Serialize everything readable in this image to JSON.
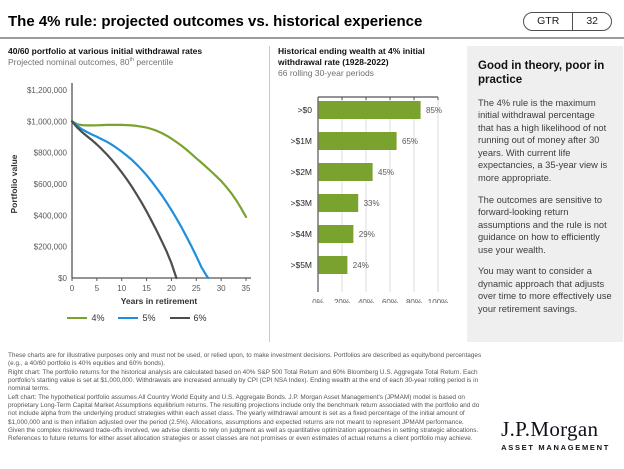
{
  "header": {
    "title": "The 4% rule: projected outcomes vs. historical experience",
    "badge": {
      "program": "GTR",
      "page": "32"
    }
  },
  "left_panel": {
    "title": "40/60 portfolio at various initial withdrawal rates",
    "subtitle_prefix": "Projected nominal outcomes, 80",
    "subtitle_sup": "th",
    "subtitle_suffix": " percentile"
  },
  "mid_panel": {
    "title": "Historical ending wealth at 4% initial withdrawal rate (1928-2022)",
    "subtitle": "66 rolling 30-year periods"
  },
  "chart_data": [
    {
      "type": "line",
      "title": "40/60 portfolio at various initial withdrawal rates",
      "subtitle": "Projected nominal outcomes, 80th percentile",
      "xlabel": "Years in retirement",
      "ylabel": "Portfolio value",
      "xlim": [
        0,
        35
      ],
      "ylim": [
        0,
        1200000
      ],
      "grid": false,
      "legend_position": "bottom",
      "xticks": [
        {
          "v": 0,
          "label": "0"
        },
        {
          "v": 5,
          "label": "5"
        },
        {
          "v": 10,
          "label": "10"
        },
        {
          "v": 15,
          "label": "15"
        },
        {
          "v": 20,
          "label": "20"
        },
        {
          "v": 25,
          "label": "25"
        },
        {
          "v": 30,
          "label": "30"
        },
        {
          "v": 35,
          "label": "35"
        }
      ],
      "yticks": [
        {
          "v": 0,
          "label": "$0"
        },
        {
          "v": 200000,
          "label": "$200,000"
        },
        {
          "v": 400000,
          "label": "$400,000"
        },
        {
          "v": 600000,
          "label": "$600,000"
        },
        {
          "v": 800000,
          "label": "$800,000"
        },
        {
          "v": 1000000,
          "label": "$1,000,000"
        },
        {
          "v": 1200000,
          "label": "$1,200,000"
        }
      ],
      "series": [
        {
          "name": "4%",
          "color": "#7AA22E",
          "x": [
            0,
            1,
            2,
            3,
            4,
            5,
            6,
            7,
            8,
            9,
            10,
            11,
            12,
            13,
            14,
            15,
            16,
            17,
            18,
            19,
            20,
            21,
            22,
            23,
            24,
            25,
            26,
            27,
            28,
            29,
            30,
            31,
            32,
            33,
            34,
            35
          ],
          "values": [
            1000000,
            982000,
            976000,
            974000,
            974000,
            975000,
            976000,
            977000,
            977000,
            977000,
            977000,
            976000,
            974000,
            971000,
            966000,
            960000,
            951000,
            940000,
            926000,
            909000,
            890000,
            868000,
            845000,
            820000,
            793000,
            764000,
            737000,
            709000,
            680000,
            650000,
            620000,
            583000,
            543000,
            497000,
            446000,
            390000
          ]
        },
        {
          "name": "5%",
          "color": "#1F8FDD",
          "x": [
            0,
            1,
            2,
            3,
            4,
            5,
            6,
            7,
            8,
            9,
            10,
            11,
            12,
            13,
            14,
            15,
            16,
            17,
            18,
            19,
            20,
            21,
            22,
            23,
            24,
            25,
            26,
            27,
            27.4
          ],
          "values": [
            1000000,
            972000,
            950000,
            932000,
            916000,
            901000,
            886000,
            870000,
            851000,
            830000,
            807000,
            782000,
            755000,
            725000,
            692000,
            656000,
            617000,
            575000,
            531000,
            484000,
            434000,
            381000,
            325000,
            266000,
            204000,
            139000,
            71000,
            18000,
            0
          ]
        },
        {
          "name": "6%",
          "color": "#4D4D4D",
          "x": [
            0,
            1,
            2,
            3,
            4,
            5,
            6,
            7,
            8,
            9,
            10,
            11,
            12,
            13,
            14,
            15,
            16,
            17,
            18,
            19,
            20,
            21
          ],
          "values": [
            1000000,
            962000,
            932000,
            906000,
            880000,
            852000,
            822000,
            789000,
            754000,
            716000,
            675000,
            631000,
            584000,
            534000,
            481000,
            425000,
            366000,
            304000,
            239000,
            171000,
            95000,
            0
          ]
        }
      ]
    },
    {
      "type": "bar",
      "orientation": "horizontal",
      "title": "Historical ending wealth at 4% initial withdrawal rate (1928-2022)",
      "subtitle": "66 rolling 30-year periods",
      "categories": [
        ">$0",
        ">$1M",
        ">$2M",
        ">$3M",
        ">$4M",
        ">$5M"
      ],
      "values": [
        85,
        65,
        45,
        33,
        29,
        24
      ],
      "data_labels": [
        "85%",
        "65%",
        "45%",
        "33%",
        "29%",
        "24%"
      ],
      "xlim": [
        0,
        100
      ],
      "grid": true,
      "bar_color": "#7AA22E",
      "xticks": [
        {
          "v": 0,
          "label": "0%"
        },
        {
          "v": 20,
          "label": "20%"
        },
        {
          "v": 40,
          "label": "40%"
        },
        {
          "v": 60,
          "label": "60%"
        },
        {
          "v": 80,
          "label": "80%"
        },
        {
          "v": 100,
          "label": "100%"
        }
      ]
    }
  ],
  "callout": {
    "heading": "Good in theory, poor in practice",
    "paragraphs": [
      "The 4% rule is the maximum initial withdrawal percentage that has a high likelihood of not running out of money after 30 years. With current life expectancies, a 35-year view is more appropriate.",
      "The outcomes are sensitive to forward-looking return assumptions and the rule is not guidance on how to efficiently use your wealth.",
      "You may want to consider a dynamic approach that adjusts over time to more effectively use your retirement savings."
    ]
  },
  "footnotes": [
    "These charts are for illustrative purposes only and must not be used, or relied upon, to make investment decisions. Portfolios are described as equity/bond percentages (e.g., a 40/60 portfolio is 40% equities and 60% bonds).",
    "Right chart: The portfolio returns for the historical analysis are calculated based on 40% S&P 500 Total Return and 60% Bloomberg U.S. Aggregate Total Return. Each portfolio's starting value is set at $1,000,000. Withdrawals are increased annually by CPI (CPI NSA Index). Ending wealth at the end of each 30-year rolling period is in nominal terms.",
    "Left chart: The hypothetical portfolio assumes All Country World Equity and U.S. Aggregate Bonds. J.P. Morgan Asset Management's (JPMAM) model is based on proprietary Long-Term Capital Market Assumptions equilibrium returns. The resulting projections include only the benchmark return associated with the portfolio and do not include alpha from the underlying product strategies within each asset class. The yearly withdrawal amount is set as a fixed percentage of the initial amount of $1,000,000 and is then inflation adjusted over the period (2.5%). Allocations, assumptions and expected returns are not meant to represent JPMAM performance. Given the complex risk/reward trade-offs involved, we advise clients to rely on judgment as well as quantitative optimization approaches in setting strategic allocations. References to future returns for either asset allocation strategies or asset classes are not promises or even estimates of actual returns a client portfolio may achieve."
  ],
  "logo": {
    "brand": "J.P.Morgan",
    "division": "ASSET MANAGEMENT"
  }
}
